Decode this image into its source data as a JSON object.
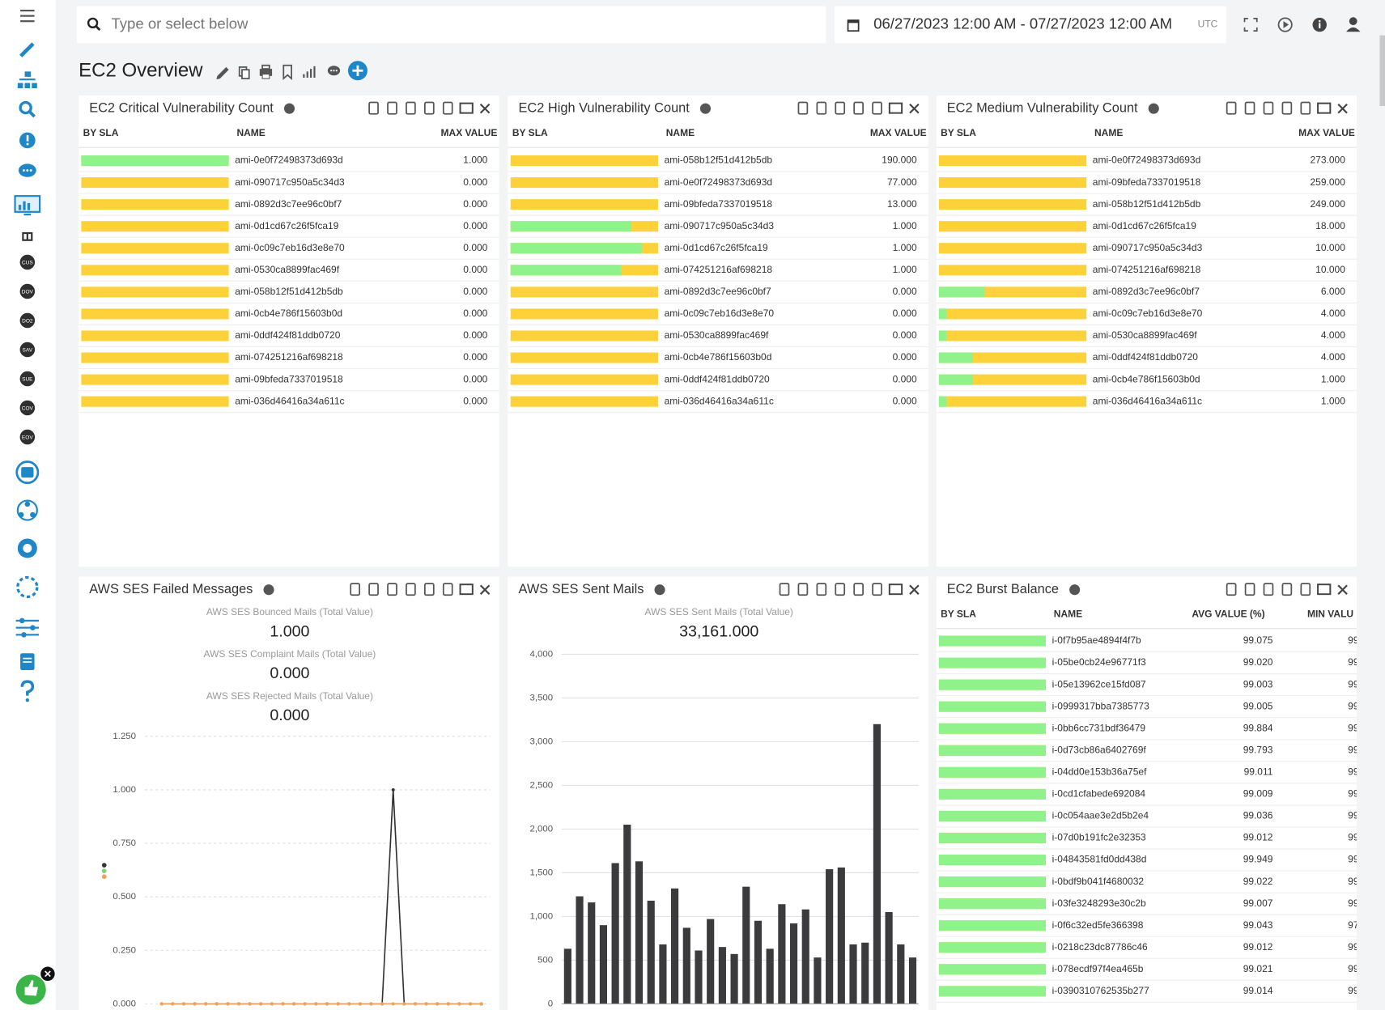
{
  "toolbar": {
    "search_placeholder": "Type or select below",
    "date_range": "06/27/2023 12:00 AM - 07/27/2023 12:00 AM",
    "timezone": "UTC"
  },
  "sidebar": {
    "badges": [
      "CUS",
      "DOV",
      "DO2",
      "SAV",
      "SUE",
      "COV",
      "EOV"
    ]
  },
  "dashboard": {
    "title": "EC2 Overview"
  },
  "panels": [
    {
      "title": "EC2 Critical Vulnerability Count",
      "table": {
        "columns": [
          "BY SLA",
          "NAME",
          "MAX VALUE"
        ],
        "rows": [
          {
            "name": "ami-0e0f72498373d693d",
            "value": "1.000",
            "sla_ok": 100
          },
          {
            "name": "ami-090717c950a5c34d3",
            "value": "0.000",
            "sla_ok": 0
          },
          {
            "name": "ami-0892d3c7ee96c0bf7",
            "value": "0.000",
            "sla_ok": 0
          },
          {
            "name": "ami-0d1cd67c26f5fca19",
            "value": "0.000",
            "sla_ok": 0
          },
          {
            "name": "ami-0c09c7eb16d3e8e70",
            "value": "0.000",
            "sla_ok": 0
          },
          {
            "name": "ami-0530ca8899fac469f",
            "value": "0.000",
            "sla_ok": 0
          },
          {
            "name": "ami-058b12f51d412b5db",
            "value": "0.000",
            "sla_ok": 0
          },
          {
            "name": "ami-0cb4e786f15603b0d",
            "value": "0.000",
            "sla_ok": 0
          },
          {
            "name": "ami-0ddf424f81ddb0720",
            "value": "0.000",
            "sla_ok": 0
          },
          {
            "name": "ami-074251216af698218",
            "value": "0.000",
            "sla_ok": 0
          },
          {
            "name": "ami-09bfeda7337019518",
            "value": "0.000",
            "sla_ok": 0
          },
          {
            "name": "ami-036d46416a34a611c",
            "value": "0.000",
            "sla_ok": 0
          }
        ]
      }
    },
    {
      "title": "EC2 High Vulnerability Count",
      "table": {
        "columns": [
          "BY SLA",
          "NAME",
          "MAX VALUE"
        ],
        "rows": [
          {
            "name": "ami-058b12f51d412b5db",
            "value": "190.000",
            "sla_ok": 0
          },
          {
            "name": "ami-0e0f72498373d693d",
            "value": "77.000",
            "sla_ok": 0
          },
          {
            "name": "ami-09bfeda7337019518",
            "value": "13.000",
            "sla_ok": 0
          },
          {
            "name": "ami-090717c950a5c34d3",
            "value": "1.000",
            "sla_ok": 82
          },
          {
            "name": "ami-0d1cd67c26f5fca19",
            "value": "1.000",
            "sla_ok": 89
          },
          {
            "name": "ami-074251216af698218",
            "value": "1.000",
            "sla_ok": 75
          },
          {
            "name": "ami-0892d3c7ee96c0bf7",
            "value": "0.000",
            "sla_ok": 0
          },
          {
            "name": "ami-0c09c7eb16d3e8e70",
            "value": "0.000",
            "sla_ok": 0
          },
          {
            "name": "ami-0530ca8899fac469f",
            "value": "0.000",
            "sla_ok": 0
          },
          {
            "name": "ami-0cb4e786f15603b0d",
            "value": "0.000",
            "sla_ok": 0
          },
          {
            "name": "ami-0ddf424f81ddb0720",
            "value": "0.000",
            "sla_ok": 0
          },
          {
            "name": "ami-036d46416a34a611c",
            "value": "0.000",
            "sla_ok": 0
          }
        ]
      }
    },
    {
      "title": "EC2 Medium Vulnerability Count",
      "table": {
        "columns": [
          "BY SLA",
          "NAME",
          "MAX VALUE"
        ],
        "rows": [
          {
            "name": "ami-0e0f72498373d693d",
            "value": "273.000",
            "sla_ok": 0
          },
          {
            "name": "ami-09bfeda7337019518",
            "value": "259.000",
            "sla_ok": 0
          },
          {
            "name": "ami-058b12f51d412b5db",
            "value": "249.000",
            "sla_ok": 0
          },
          {
            "name": "ami-0d1cd67c26f5fca19",
            "value": "18.000",
            "sla_ok": 0
          },
          {
            "name": "ami-090717c950a5c34d3",
            "value": "10.000",
            "sla_ok": 0
          },
          {
            "name": "ami-074251216af698218",
            "value": "10.000",
            "sla_ok": 0
          },
          {
            "name": "ami-0892d3c7ee96c0bf7",
            "value": "6.000",
            "sla_ok": 31
          },
          {
            "name": "ami-0c09c7eb16d3e8e70",
            "value": "4.000",
            "sla_ok": 5
          },
          {
            "name": "ami-0530ca8899fac469f",
            "value": "4.000",
            "sla_ok": 5
          },
          {
            "name": "ami-0ddf424f81ddb0720",
            "value": "4.000",
            "sla_ok": 23
          },
          {
            "name": "ami-0cb4e786f15603b0d",
            "value": "1.000",
            "sla_ok": 23
          },
          {
            "name": "ami-036d46416a34a611c",
            "value": "1.000",
            "sla_ok": 5
          }
        ]
      }
    },
    {
      "title": "AWS SES Failed Messages",
      "kpis": [
        {
          "label": "AWS SES Bounced Mails (Total Value)",
          "value": "1.000"
        },
        {
          "label": "AWS SES Complaint Mails (Total Value)",
          "value": "0.000"
        },
        {
          "label": "AWS SES Rejected Mails (Total Value)",
          "value": "0.000"
        }
      ],
      "chart": {
        "type": "line",
        "grid": true,
        "ylim": [
          0,
          1.25
        ],
        "yticks": [
          {
            "value": 0,
            "label": "0.000"
          },
          {
            "value": 0.25,
            "label": "0.250"
          },
          {
            "value": 0.5,
            "label": "0.500"
          },
          {
            "value": 0.75,
            "label": "0.750"
          },
          {
            "value": 1,
            "label": "1.000"
          },
          {
            "value": 1.25,
            "label": "1.250"
          }
        ],
        "series": [
          {
            "color": "#333333",
            "values": [
              0,
              0,
              0,
              0,
              0,
              0,
              0,
              0,
              0,
              0,
              0,
              0,
              0,
              0,
              0,
              0,
              0,
              0,
              0,
              0,
              0,
              1,
              0,
              0,
              0,
              0,
              0,
              0,
              0,
              0
            ]
          },
          {
            "color": "#7ed37a",
            "values": [
              0,
              0,
              0,
              0,
              0,
              0,
              0,
              0,
              0,
              0,
              0,
              0,
              0,
              0,
              0,
              0,
              0,
              0,
              0,
              0,
              0,
              0,
              0,
              0,
              0,
              0,
              0,
              0,
              0,
              0
            ]
          },
          {
            "color": "#f5a05a",
            "values": [
              0,
              0,
              0,
              0,
              0,
              0,
              0,
              0,
              0,
              0,
              0,
              0,
              0,
              0,
              0,
              0,
              0,
              0,
              0,
              0,
              0,
              0,
              0,
              0,
              0,
              0,
              0,
              0,
              0,
              0
            ]
          }
        ]
      }
    },
    {
      "title": "AWS SES Sent Mails",
      "kpis": [
        {
          "label": "AWS SES Sent Mails (Total Value)",
          "value": "33,161.000"
        }
      ],
      "chart": {
        "type": "bar",
        "grid": true,
        "color": "#3b3b3d",
        "ylim": [
          0,
          4000
        ],
        "yticks": [
          0,
          500,
          {
            "value": 1000,
            "label": "1,000"
          },
          {
            "value": 1500,
            "label": "1,500"
          },
          {
            "value": 2000,
            "label": "2,000"
          },
          {
            "value": 2500,
            "label": "2,500"
          },
          {
            "value": 3000,
            "label": "3,000"
          },
          {
            "value": 3500,
            "label": "3,500"
          },
          {
            "value": 4000,
            "label": "4,000"
          }
        ],
        "values": [
          630,
          1230,
          1160,
          900,
          1610,
          2050,
          1630,
          1180,
          680,
          1320,
          870,
          610,
          970,
          650,
          570,
          1340,
          950,
          630,
          1140,
          920,
          1080,
          530,
          1540,
          1560,
          680,
          700,
          3200,
          1050,
          680,
          530
        ]
      }
    },
    {
      "title": "EC2 Burst Balance",
      "table": {
        "columns": [
          "BY SLA",
          "NAME",
          "AVG VALUE (%)",
          "MIN VALU"
        ],
        "rows": [
          {
            "name": "i-0f7b95ae4894f4f7b",
            "value": "99.075",
            "min": "99",
            "sla_ok": 100
          },
          {
            "name": "i-05be0cb24e96771f3",
            "value": "99.020",
            "min": "99",
            "sla_ok": 100
          },
          {
            "name": "i-05e13962ce15fd087",
            "value": "99.003",
            "min": "99",
            "sla_ok": 100
          },
          {
            "name": "i-0999317bba7385773",
            "value": "99.005",
            "min": "99",
            "sla_ok": 100
          },
          {
            "name": "i-0bb6cc731bdf36479",
            "value": "99.884",
            "min": "99",
            "sla_ok": 100
          },
          {
            "name": "i-0d73cb86a6402769f",
            "value": "99.793",
            "min": "99",
            "sla_ok": 100
          },
          {
            "name": "i-04dd0e153b36a75ef",
            "value": "99.011",
            "min": "99",
            "sla_ok": 100
          },
          {
            "name": "i-0cd1cfabede692084",
            "value": "99.009",
            "min": "99",
            "sla_ok": 100
          },
          {
            "name": "i-0c054aae3e2d5b2e4",
            "value": "99.036",
            "min": "99",
            "sla_ok": 100
          },
          {
            "name": "i-07d0b191fc2e32353",
            "value": "99.012",
            "min": "99",
            "sla_ok": 100
          },
          {
            "name": "i-04843581fd0dd438d",
            "value": "99.949",
            "min": "99",
            "sla_ok": 100
          },
          {
            "name": "i-0bdf9b041f4680032",
            "value": "99.022",
            "min": "99",
            "sla_ok": 100
          },
          {
            "name": "i-03fe3248293e30c2b",
            "value": "99.007",
            "min": "99",
            "sla_ok": 100
          },
          {
            "name": "i-0f6c32ed5fe366398",
            "value": "99.043",
            "min": "97",
            "sla_ok": 100
          },
          {
            "name": "i-0218c23dc87786c46",
            "value": "99.012",
            "min": "99",
            "sla_ok": 100
          },
          {
            "name": "i-078ecdf97f4ea465b",
            "value": "99.021",
            "min": "99",
            "sla_ok": 100
          },
          {
            "name": "i-0390310762535b277",
            "value": "99.014",
            "min": "99",
            "sla_ok": 100
          }
        ]
      }
    }
  ]
}
